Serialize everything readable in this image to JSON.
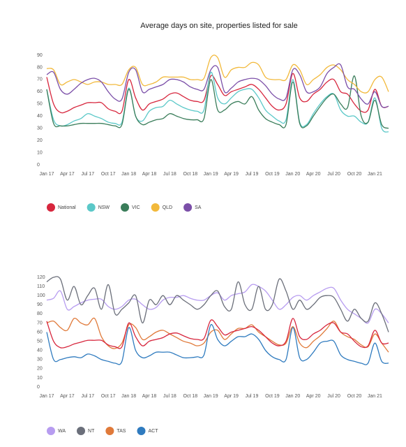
{
  "chart_data": [
    {
      "type": "line",
      "title": "Average days on site, properties listed for sale",
      "categories": [
        "Jan 17",
        null,
        null,
        "Apr 17",
        null,
        null,
        "Jul 17",
        null,
        null,
        "Oct 17",
        null,
        null,
        "Jan 18",
        null,
        null,
        "Apr 18",
        null,
        null,
        "Jul 18",
        null,
        null,
        "Oct 18",
        null,
        null,
        "Jan 19",
        null,
        null,
        "Apr 19",
        null,
        null,
        "Jul 19",
        null,
        null,
        "Oct 19",
        null,
        null,
        "Jan 20",
        null,
        null,
        "Apr 20",
        null,
        null,
        "Jul 20",
        null,
        null,
        "Oct 20",
        null,
        null,
        "Jan 21",
        null,
        null
      ],
      "ylim": [
        0,
        90
      ],
      "yticks": [
        0,
        10,
        20,
        30,
        40,
        50,
        60,
        70,
        80,
        90
      ],
      "series": [
        {
          "name": "National",
          "color": "#d7263d",
          "values": [
            72,
            50,
            43,
            44,
            47,
            49,
            51,
            51,
            51,
            46,
            44,
            44,
            70,
            55,
            45,
            50,
            52,
            54,
            58,
            59,
            56,
            53,
            52,
            53,
            73,
            66,
            57,
            60,
            62,
            64,
            66,
            62,
            55,
            48,
            45,
            50,
            75,
            55,
            52,
            58,
            62,
            68,
            70,
            60,
            58,
            50,
            44,
            45,
            62,
            48,
            48
          ]
        },
        {
          "name": "NSW",
          "color": "#5bc8c8",
          "values": [
            62,
            37,
            32,
            33,
            36,
            38,
            42,
            40,
            38,
            35,
            34,
            35,
            63,
            40,
            36,
            44,
            47,
            48,
            53,
            50,
            47,
            45,
            44,
            45,
            76,
            55,
            50,
            55,
            60,
            62,
            62,
            55,
            45,
            40,
            36,
            37,
            70,
            35,
            33,
            42,
            50,
            56,
            58,
            45,
            40,
            40,
            35,
            35,
            55,
            30,
            27
          ]
        },
        {
          "name": "VIC",
          "color": "#3a7d5a",
          "values": [
            62,
            34,
            32,
            32,
            33,
            34,
            34,
            34,
            34,
            33,
            32,
            33,
            62,
            40,
            33,
            35,
            37,
            38,
            42,
            40,
            38,
            37,
            37,
            38,
            70,
            45,
            45,
            50,
            52,
            50,
            56,
            45,
            38,
            35,
            33,
            33,
            68,
            34,
            32,
            40,
            48,
            55,
            58,
            50,
            47,
            73,
            40,
            35,
            53,
            33,
            30
          ]
        },
        {
          "name": "QLD",
          "color": "#f2b93b",
          "values": [
            79,
            78,
            66,
            68,
            70,
            68,
            66,
            68,
            68,
            66,
            66,
            66,
            78,
            80,
            66,
            66,
            68,
            72,
            72,
            72,
            72,
            70,
            70,
            71,
            88,
            88,
            72,
            78,
            80,
            80,
            84,
            82,
            72,
            70,
            70,
            70,
            82,
            78,
            66,
            70,
            74,
            80,
            82,
            78,
            70,
            66,
            60,
            60,
            70,
            72,
            60
          ]
        },
        {
          "name": "SA",
          "color": "#7b4fa8",
          "values": [
            74,
            76,
            62,
            58,
            62,
            67,
            70,
            71,
            68,
            60,
            54,
            54,
            76,
            78,
            60,
            62,
            64,
            66,
            70,
            70,
            68,
            64,
            62,
            62,
            78,
            80,
            60,
            63,
            68,
            70,
            71,
            70,
            65,
            58,
            54,
            55,
            78,
            74,
            60,
            60,
            64,
            75,
            80,
            82,
            64,
            62,
            54,
            50,
            60,
            48,
            48
          ]
        }
      ]
    },
    {
      "type": "line",
      "categories": [
        "Jan 17",
        null,
        null,
        "Apr 17",
        null,
        null,
        "Jul 17",
        null,
        null,
        "Oct 17",
        null,
        null,
        "Jan 18",
        null,
        null,
        "Apr 18",
        null,
        null,
        "Jul 18",
        null,
        null,
        "Oct 18",
        null,
        null,
        "Jan 19",
        null,
        null,
        "Apr 19",
        null,
        null,
        "Jul 19",
        null,
        null,
        "Oct 19",
        null,
        null,
        "Jan 20",
        null,
        null,
        "Apr 20",
        null,
        null,
        "Jul 20",
        null,
        null,
        "Oct 20",
        null,
        null,
        "Jan 21",
        null,
        null
      ],
      "ylim": [
        0,
        120
      ],
      "yticks": [
        0,
        10,
        20,
        30,
        40,
        50,
        60,
        70,
        80,
        90,
        100,
        110,
        120
      ],
      "series": [
        {
          "name": "WA",
          "color": "#b79cf0",
          "values": [
            95,
            97,
            105,
            85,
            88,
            92,
            95,
            96,
            96,
            88,
            85,
            88,
            95,
            96,
            90,
            85,
            87,
            95,
            98,
            98,
            100,
            97,
            95,
            95,
            100,
            103,
            95,
            100,
            102,
            104,
            112,
            110,
            105,
            95,
            85,
            90,
            98,
            100,
            95,
            100,
            104,
            108,
            108,
            95,
            85,
            80,
            75,
            70,
            85,
            80,
            70
          ]
        },
        {
          "name": "NT",
          "color": "#6b6f7a",
          "values": [
            115,
            120,
            118,
            95,
            110,
            90,
            100,
            108,
            85,
            112,
            80,
            85,
            92,
            100,
            70,
            95,
            90,
            100,
            90,
            100,
            95,
            90,
            85,
            90,
            100,
            105,
            88,
            85,
            115,
            90,
            85,
            110,
            85,
            90,
            118,
            105,
            85,
            95,
            85,
            90,
            98,
            100,
            98,
            85,
            72,
            85,
            75,
            72,
            92,
            80,
            60
          ]
        },
        {
          "name": "TAS",
          "color": "#e07a3a",
          "values": [
            70,
            72,
            65,
            62,
            75,
            70,
            68,
            75,
            55,
            45,
            42,
            48,
            68,
            65,
            52,
            55,
            60,
            62,
            58,
            54,
            50,
            48,
            45,
            48,
            60,
            62,
            52,
            58,
            64,
            64,
            68,
            60,
            55,
            50,
            46,
            48,
            66,
            48,
            43,
            50,
            56,
            64,
            72,
            60,
            55,
            52,
            46,
            44,
            58,
            48,
            38
          ]
        },
        {
          "name": "ACT",
          "color": "#2f7bbf",
          "values": [
            60,
            30,
            30,
            32,
            33,
            32,
            36,
            34,
            30,
            28,
            26,
            28,
            65,
            40,
            32,
            34,
            38,
            38,
            38,
            35,
            32,
            32,
            33,
            35,
            68,
            52,
            45,
            50,
            55,
            55,
            58,
            52,
            40,
            33,
            30,
            30,
            65,
            32,
            30,
            38,
            48,
            50,
            50,
            35,
            30,
            28,
            26,
            26,
            48,
            28,
            26
          ]
        },
        {
          "color": "#d7263d",
          "values": [
            72,
            50,
            43,
            44,
            47,
            49,
            51,
            51,
            51,
            46,
            44,
            44,
            70,
            55,
            45,
            50,
            52,
            54,
            58,
            59,
            56,
            53,
            52,
            53,
            73,
            66,
            57,
            60,
            62,
            64,
            66,
            62,
            55,
            48,
            45,
            50,
            75,
            55,
            52,
            58,
            62,
            68,
            70,
            60,
            58,
            50,
            44,
            45,
            62,
            48,
            48
          ]
        }
      ]
    }
  ]
}
